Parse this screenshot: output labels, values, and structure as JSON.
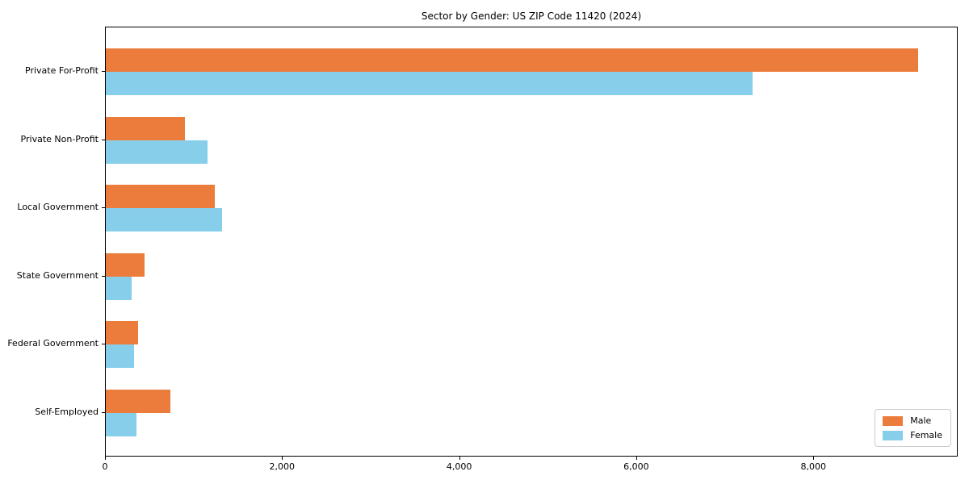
{
  "title": "Sector by Gender: US ZIP Code 11420 (2024)",
  "chart_data": {
    "type": "bar",
    "orientation": "horizontal",
    "title": "Sector by Gender: US ZIP Code 11420 (2024)",
    "categories": [
      "Private For-Profit",
      "Private Non-Profit",
      "Local Government",
      "State Government",
      "Federal Government",
      "Self-Employed"
    ],
    "series": [
      {
        "name": "Male",
        "color": "#EC7C3C",
        "values": [
          9170,
          890,
          1230,
          440,
          365,
          730
        ]
      },
      {
        "name": "Female",
        "color": "#87CEEB",
        "values": [
          7300,
          1150,
          1310,
          290,
          320,
          350
        ]
      }
    ],
    "xlabel": "",
    "ylabel": "",
    "xlim": [
      0,
      9630
    ],
    "xticks": [
      0,
      2000,
      4000,
      6000,
      8000
    ],
    "xtick_labels": [
      "0",
      "2,000",
      "4,000",
      "6,000",
      "8,000"
    ],
    "grid": false,
    "legend_position": "lower right",
    "legend_border_color": "#cccccc"
  }
}
